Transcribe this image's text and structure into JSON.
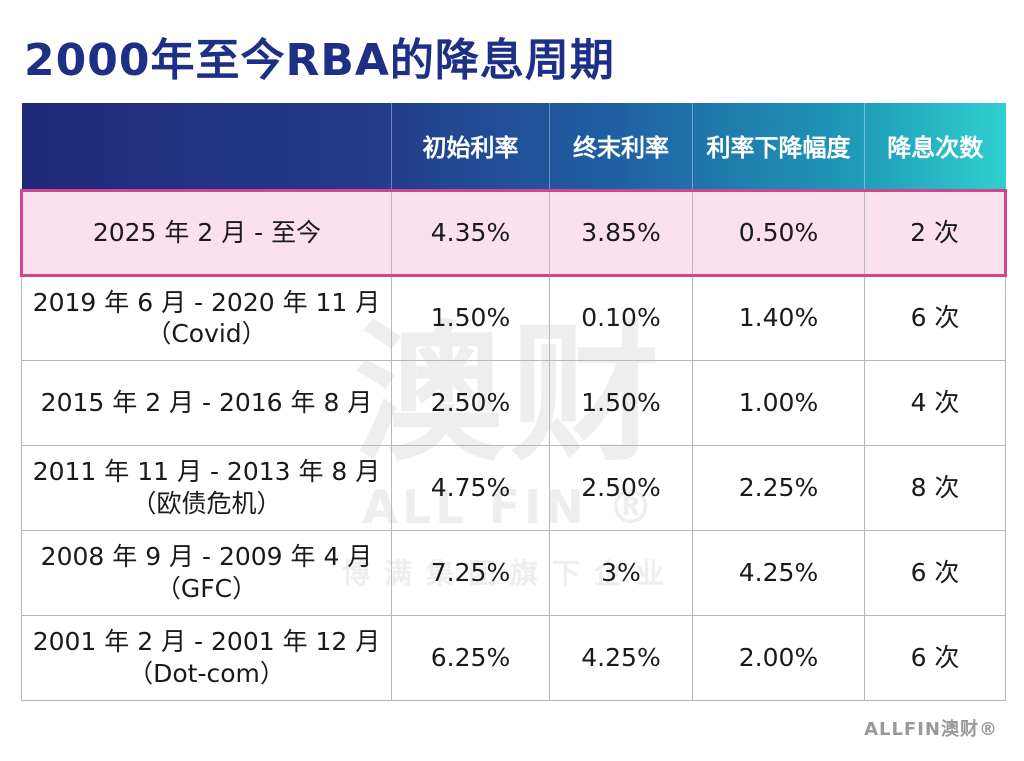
{
  "title": "2000年至今RBA的降息周期",
  "table": {
    "headers": [
      "",
      "初始利率",
      "终末利率",
      "利率下降幅度",
      "降息次数"
    ],
    "rows": [
      {
        "period": "2025 年 2 月 - 至今",
        "note": "",
        "initial": "4.35%",
        "final": "3.85%",
        "drop": "0.50%",
        "cuts": "2 次"
      },
      {
        "period": "2019 年 6 月 - 2020 年 11 月",
        "note": "（Covid）",
        "initial": "1.50%",
        "final": "0.10%",
        "drop": "1.40%",
        "cuts": "6 次"
      },
      {
        "period": "2015 年 2 月 - 2016 年 8 月",
        "note": "",
        "initial": "2.50%",
        "final": "1.50%",
        "drop": "1.00%",
        "cuts": "4 次"
      },
      {
        "period": "2011 年 11 月 - 2013 年 8 月",
        "note": "（欧债危机）",
        "initial": "4.75%",
        "final": "2.50%",
        "drop": "2.25%",
        "cuts": "8 次"
      },
      {
        "period": "2008 年 9 月 - 2009 年 4 月",
        "note": "（GFC）",
        "initial": "7.25%",
        "final": "3%",
        "drop": "4.25%",
        "cuts": "6 次"
      },
      {
        "period": "2001 年 2 月 - 2001 年 12 月",
        "note": "（Dot-com）",
        "initial": "6.25%",
        "final": "4.25%",
        "drop": "2.00%",
        "cuts": "6 次"
      }
    ]
  },
  "watermark": {
    "main": "澳财",
    "sub": "ALL FIN ®",
    "group": "博满集团旗下企业"
  },
  "footer_logo": "ALLFIN澳财®",
  "colors": {
    "title": "#1e2f86",
    "highlight_bg": "#fbe0ee",
    "highlight_border": "#d0458e",
    "header_start": "#1e2a78",
    "header_end": "#2fd0cf"
  }
}
